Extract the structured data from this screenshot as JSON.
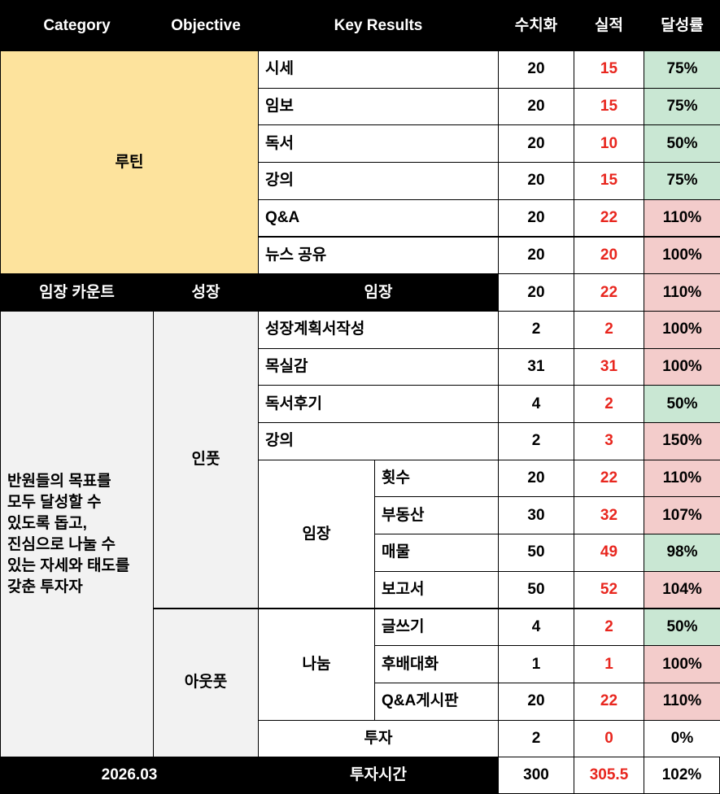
{
  "header": [
    "Category",
    "Objective",
    "Key Results",
    "수치화",
    "실적",
    "달성률"
  ],
  "groups": {
    "routine": "루틴",
    "count_category": "임장 카운트",
    "count_objective": "성장",
    "mission": "반원들의 목표를\n모두 달성할 수\n있도록 돕고,\n진심으로 나눌 수\n있는 자세와 태도를\n갖춘 투자자",
    "input": "인풋",
    "output": "아웃풋",
    "imjang": "임장",
    "sharing": "나눔"
  },
  "rows": [
    {
      "key_result": "시세",
      "target": 20,
      "actual": 15,
      "rate": "75%",
      "rate_color": "#c9e7d3"
    },
    {
      "key_result": "임보",
      "target": 20,
      "actual": 15,
      "rate": "75%",
      "rate_color": "#c9e7d3"
    },
    {
      "key_result": "독서",
      "target": 20,
      "actual": 10,
      "rate": "50%",
      "rate_color": "#c9e7d3"
    },
    {
      "key_result": "강의",
      "target": 20,
      "actual": 15,
      "rate": "75%",
      "rate_color": "#c9e7d3"
    },
    {
      "key_result": "Q&A",
      "target": 20,
      "actual": 22,
      "rate": "110%",
      "rate_color": "#f3cccb"
    },
    {
      "key_result": "뉴스 공유",
      "target": 20,
      "actual": 20,
      "rate": "100%",
      "rate_color": "#f3cccb"
    },
    {
      "key_result": "임장",
      "target": 20,
      "actual": 22,
      "rate": "110%",
      "rate_color": "#f3cccb"
    },
    {
      "key_result": "성장계획서작성",
      "target": 2,
      "actual": 2,
      "rate": "100%",
      "rate_color": "#f3cccb"
    },
    {
      "key_result": "목실감",
      "target": 31,
      "actual": 31,
      "rate": "100%",
      "rate_color": "#f3cccb"
    },
    {
      "key_result": "독서후기",
      "target": 4,
      "actual": 2,
      "rate": "50%",
      "rate_color": "#c9e7d3"
    },
    {
      "key_result": "강의",
      "target": 2,
      "actual": 3,
      "rate": "150%",
      "rate_color": "#f3cccb"
    },
    {
      "key_result": "횟수",
      "target": 20,
      "actual": 22,
      "rate": "110%",
      "rate_color": "#f3cccb"
    },
    {
      "key_result": "부동산",
      "target": 30,
      "actual": 32,
      "rate": "107%",
      "rate_color": "#f3cccb"
    },
    {
      "key_result": "매물",
      "target": 50,
      "actual": 49,
      "rate": "98%",
      "rate_color": "#c9e7d3"
    },
    {
      "key_result": "보고서",
      "target": 50,
      "actual": 52,
      "rate": "104%",
      "rate_color": "#f3cccb"
    },
    {
      "key_result": "글쓰기",
      "target": 4,
      "actual": 2,
      "rate": "50%",
      "rate_color": "#c9e7d3"
    },
    {
      "key_result": "후배대화",
      "target": 1,
      "actual": 1,
      "rate": "100%",
      "rate_color": "#f3cccb"
    },
    {
      "key_result": "Q&A게시판",
      "target": 20,
      "actual": 22,
      "rate": "110%",
      "rate_color": "#f3cccb"
    },
    {
      "key_result": "투자",
      "target": 2,
      "actual": 0,
      "rate": "0%",
      "rate_color": "#ffffff"
    }
  ],
  "footer": {
    "period": "2026.03",
    "key_result": "투자시간",
    "target": 300,
    "actual": 305.5,
    "rate": "102%",
    "rate_color": "#ffffff"
  }
}
